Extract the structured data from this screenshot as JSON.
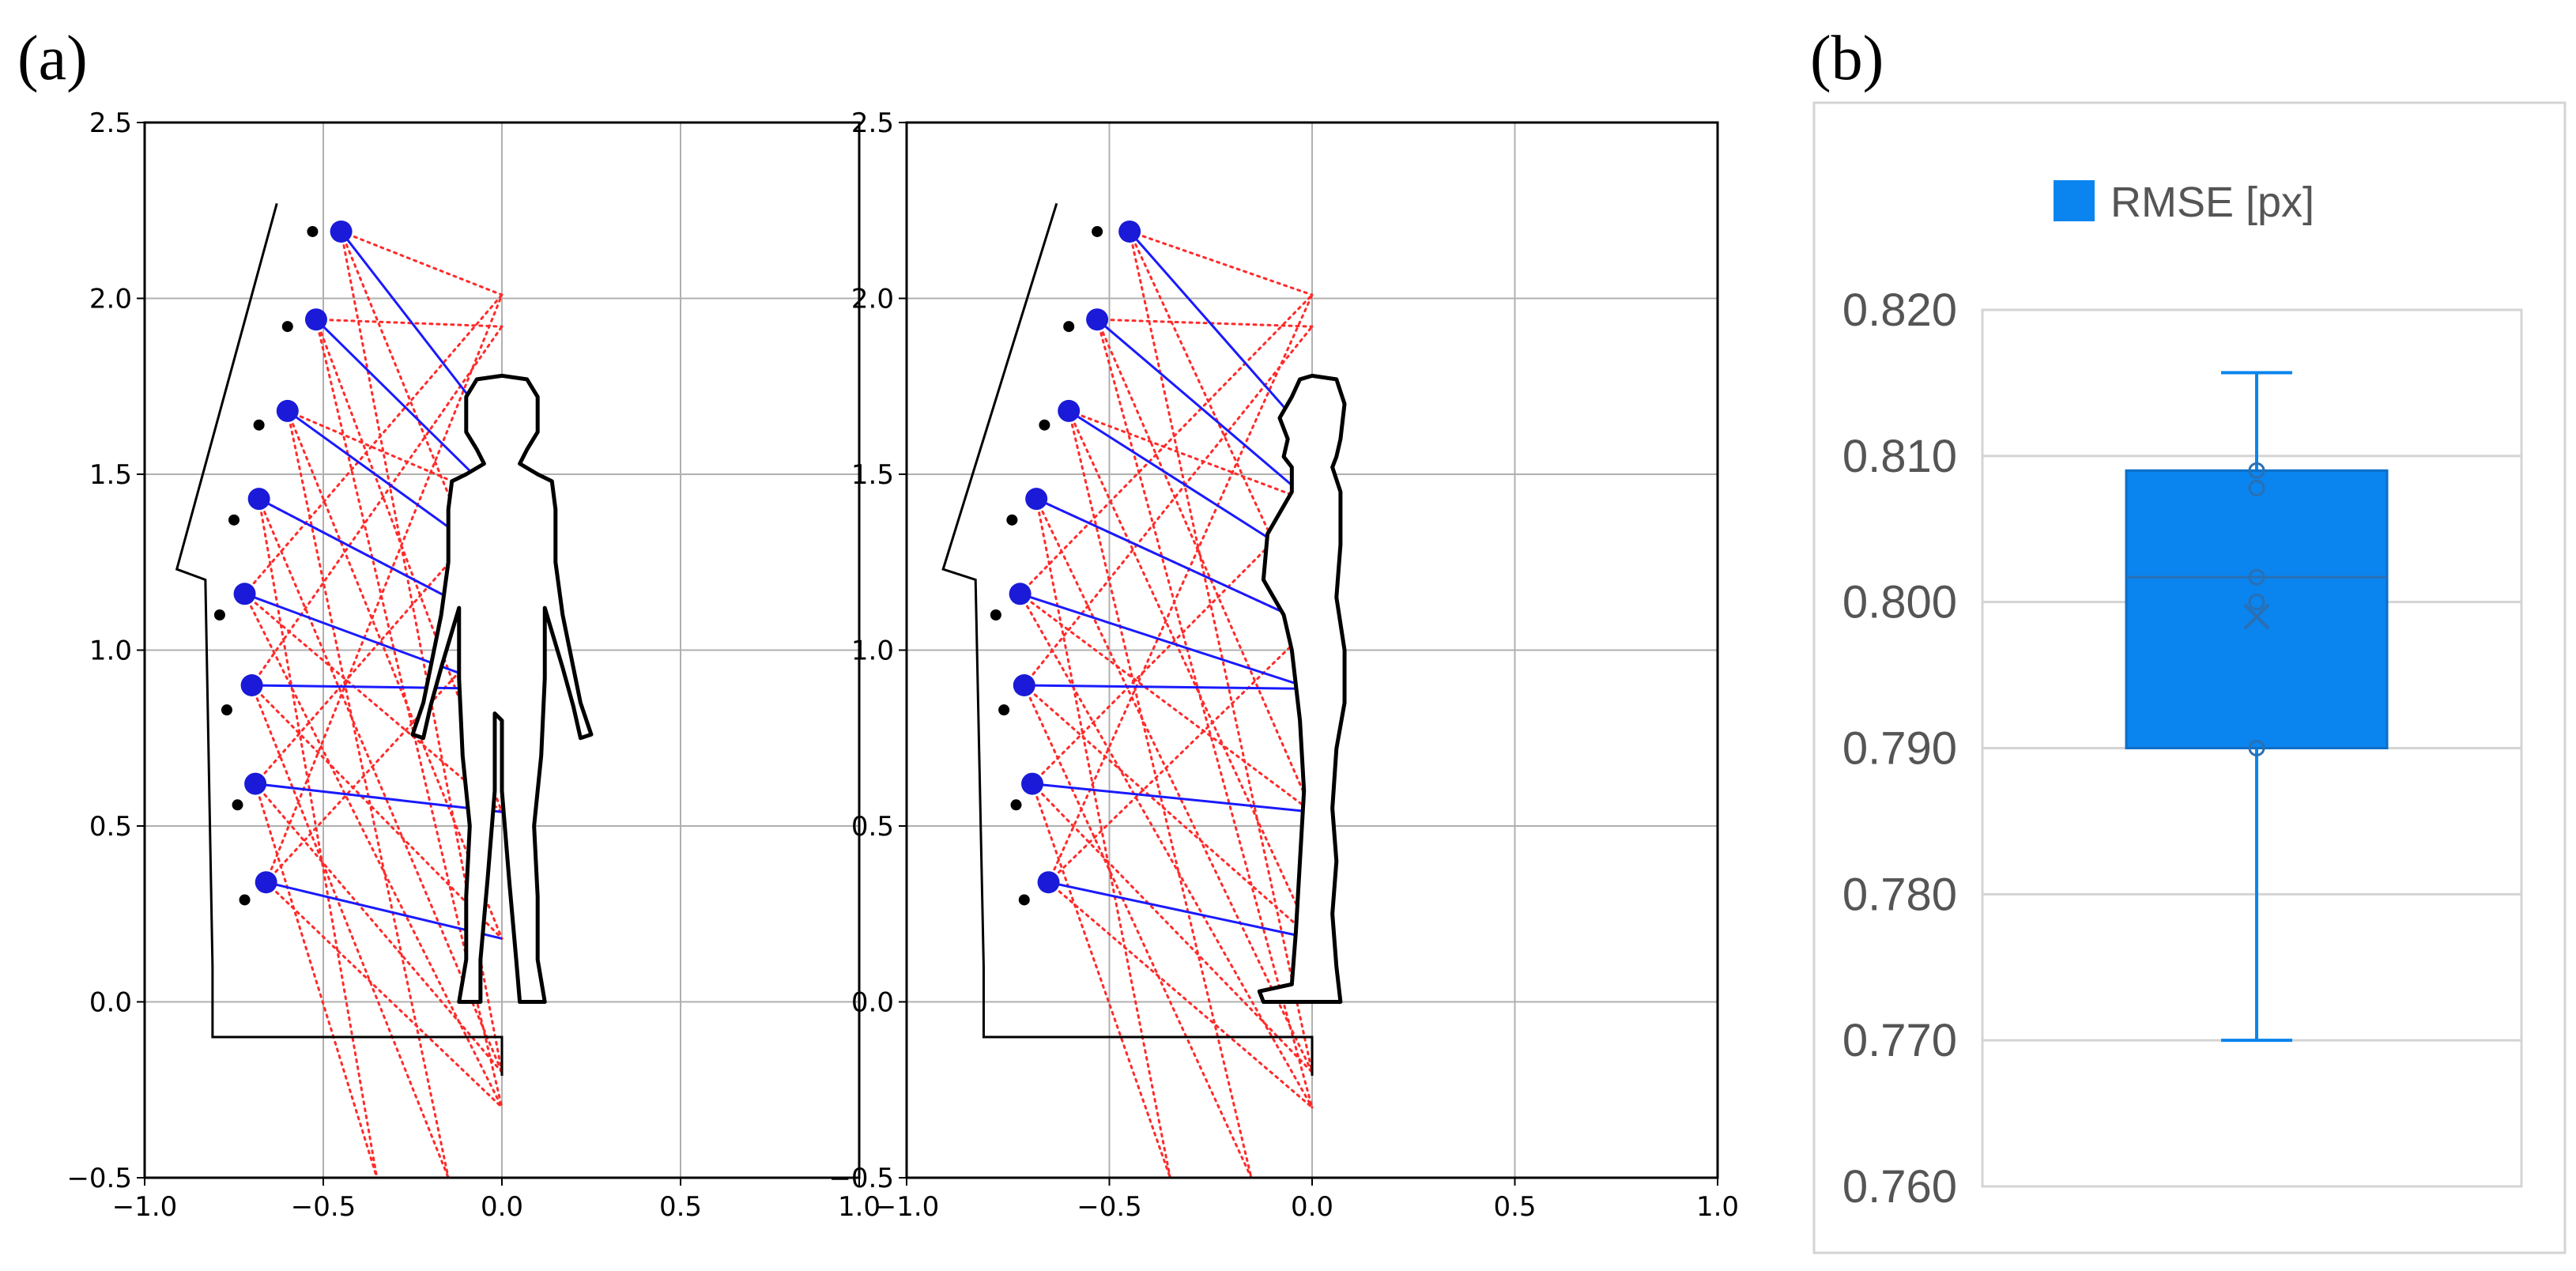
{
  "panel_labels": {
    "a": "(a)",
    "b": "(b)"
  },
  "chart_data": [
    {
      "type": "scatter",
      "panel": "(a) left",
      "title": "",
      "xlabel": "",
      "ylabel": "",
      "xlim": [
        -1.0,
        1.0
      ],
      "ylim": [
        -0.5,
        2.5
      ],
      "xticks": [
        "−1.0",
        "−0.5",
        "0.0",
        "0.5",
        "1.0"
      ],
      "yticks": [
        "−0.5",
        "0.0",
        "0.5",
        "1.0",
        "1.5",
        "2.0",
        "2.5"
      ],
      "grid": true,
      "silhouette": "front",
      "cameras": [
        [
          -0.45,
          2.19
        ],
        [
          -0.52,
          1.94
        ],
        [
          -0.6,
          1.68
        ],
        [
          -0.68,
          1.43
        ],
        [
          -0.72,
          1.16
        ],
        [
          -0.7,
          0.9
        ],
        [
          -0.69,
          0.62
        ],
        [
          -0.66,
          0.34
        ]
      ],
      "small_points": [
        [
          -0.53,
          2.19
        ],
        [
          -0.6,
          1.92
        ],
        [
          -0.68,
          1.64
        ],
        [
          -0.75,
          1.37
        ],
        [
          -0.79,
          1.1
        ],
        [
          -0.77,
          0.83
        ],
        [
          -0.74,
          0.56
        ],
        [
          -0.72,
          0.29
        ]
      ],
      "blue_targets": [
        [
          0.0,
          1.6
        ],
        [
          0.0,
          1.42
        ],
        [
          0.0,
          1.24
        ],
        [
          0.0,
          1.07
        ],
        [
          0.0,
          0.89
        ],
        [
          0.0,
          0.89
        ],
        [
          0.0,
          0.54
        ],
        [
          0.0,
          0.18
        ]
      ],
      "red_targets": [
        [
          0.0,
          2.01
        ],
        [
          0.0,
          1.92
        ],
        [
          0.0,
          1.42
        ],
        [
          0.0,
          1.07
        ],
        [
          0.0,
          0.54
        ],
        [
          0.0,
          0.18
        ],
        [
          0.0,
          -0.2
        ],
        [
          0.0,
          -0.3
        ],
        [
          -0.15,
          -0.5
        ],
        [
          -0.35,
          -0.5
        ]
      ],
      "frame": [
        [
          -0.63,
          2.27
        ],
        [
          -0.91,
          1.23
        ],
        [
          -0.83,
          1.2
        ],
        [
          -0.81,
          0.1
        ],
        [
          -0.81,
          -0.1
        ],
        [
          0.0,
          -0.1
        ],
        [
          0.0,
          -0.21
        ]
      ]
    },
    {
      "type": "scatter",
      "panel": "(a) right",
      "title": "",
      "xlabel": "",
      "ylabel": "",
      "xlim": [
        -1.0,
        1.0
      ],
      "ylim": [
        -0.5,
        2.5
      ],
      "xticks": [
        "−1.0",
        "−0.5",
        "0.0",
        "0.5",
        "1.0"
      ],
      "yticks": [
        "−0.5",
        "0.0",
        "0.5",
        "1.0",
        "1.5",
        "2.0",
        "2.5"
      ],
      "grid": true,
      "silhouette": "side",
      "cameras": [
        [
          -0.45,
          2.19
        ],
        [
          -0.53,
          1.94
        ],
        [
          -0.6,
          1.68
        ],
        [
          -0.68,
          1.43
        ],
        [
          -0.72,
          1.16
        ],
        [
          -0.71,
          0.9
        ],
        [
          -0.69,
          0.62
        ],
        [
          -0.65,
          0.34
        ]
      ],
      "small_points": [
        [
          -0.53,
          2.19
        ],
        [
          -0.6,
          1.92
        ],
        [
          -0.66,
          1.64
        ],
        [
          -0.74,
          1.37
        ],
        [
          -0.78,
          1.1
        ],
        [
          -0.76,
          0.83
        ],
        [
          -0.73,
          0.56
        ],
        [
          -0.71,
          0.29
        ]
      ],
      "blue_targets": [
        [
          0.0,
          1.6
        ],
        [
          0.0,
          1.42
        ],
        [
          0.0,
          1.24
        ],
        [
          0.0,
          1.07
        ],
        [
          0.0,
          0.89
        ],
        [
          0.0,
          0.89
        ],
        [
          0.0,
          0.54
        ],
        [
          0.0,
          0.18
        ]
      ],
      "red_targets": [
        [
          0.0,
          2.01
        ],
        [
          0.0,
          1.92
        ],
        [
          0.0,
          1.42
        ],
        [
          0.0,
          1.07
        ],
        [
          0.0,
          0.54
        ],
        [
          0.0,
          0.18
        ],
        [
          0.0,
          -0.2
        ],
        [
          0.0,
          -0.3
        ],
        [
          -0.15,
          -0.5
        ],
        [
          -0.35,
          -0.5
        ]
      ],
      "frame": [
        [
          -0.63,
          2.27
        ],
        [
          -0.91,
          1.23
        ],
        [
          -0.83,
          1.2
        ],
        [
          -0.81,
          0.1
        ],
        [
          -0.81,
          -0.1
        ],
        [
          0.0,
          -0.1
        ],
        [
          0.0,
          -0.21
        ]
      ]
    },
    {
      "type": "box",
      "panel": "(b)",
      "title": "",
      "legend": "RMSE [px]",
      "legend_position": "top",
      "ylim": [
        0.76,
        0.82
      ],
      "yticks": [
        "0.760",
        "0.770",
        "0.780",
        "0.790",
        "0.800",
        "0.810",
        "0.820"
      ],
      "grid": true,
      "color": "#0a84ee",
      "min": 0.77,
      "q1": 0.79,
      "median": 0.8017,
      "mean": 0.799,
      "q3": 0.809,
      "max": 0.8157,
      "points": [
        0.809,
        0.8078,
        0.8017,
        0.8,
        0.79
      ]
    }
  ]
}
